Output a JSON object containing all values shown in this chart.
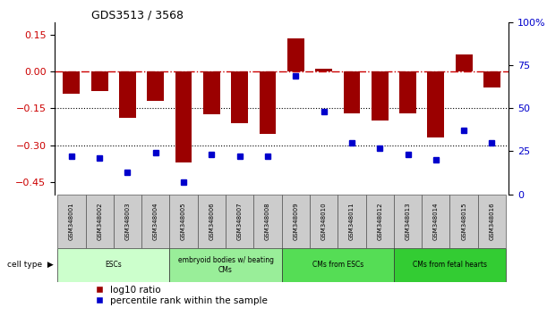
{
  "title": "GDS3513 / 3568",
  "samples": [
    "GSM348001",
    "GSM348002",
    "GSM348003",
    "GSM348004",
    "GSM348005",
    "GSM348006",
    "GSM348007",
    "GSM348008",
    "GSM348009",
    "GSM348010",
    "GSM348011",
    "GSM348012",
    "GSM348013",
    "GSM348014",
    "GSM348015",
    "GSM348016"
  ],
  "log10_ratio": [
    -0.09,
    -0.08,
    -0.19,
    -0.12,
    -0.37,
    -0.175,
    -0.21,
    -0.255,
    0.135,
    0.01,
    -0.17,
    -0.2,
    -0.17,
    -0.27,
    0.07,
    -0.065
  ],
  "percentile_rank": [
    22,
    21,
    13,
    24,
    7,
    23,
    22,
    22,
    69,
    48,
    30,
    27,
    23,
    20,
    37,
    30
  ],
  "bar_color": "#9B0000",
  "dot_color": "#0000CC",
  "dashed_line_color": "#CC0000",
  "cell_types": [
    {
      "label": "ESCs",
      "start": 0,
      "end": 3,
      "color": "#CCFFCC"
    },
    {
      "label": "embryoid bodies w/ beating\nCMs",
      "start": 4,
      "end": 7,
      "color": "#99EE99"
    },
    {
      "label": "CMs from ESCs",
      "start": 8,
      "end": 11,
      "color": "#55DD55"
    },
    {
      "label": "CMs from fetal hearts",
      "start": 12,
      "end": 15,
      "color": "#33CC33"
    }
  ],
  "ylim_left": [
    -0.5,
    0.2
  ],
  "ylim_right": [
    0,
    100
  ],
  "yticks_left": [
    0.15,
    0.0,
    -0.15,
    -0.3,
    -0.45
  ],
  "yticks_right": [
    100,
    75,
    50,
    25,
    0
  ],
  "legend_items": [
    "log10 ratio",
    "percentile rank within the sample"
  ],
  "cell_type_label": "cell type",
  "sample_box_color": "#CCCCCC",
  "bg_color": "#FFFFFF"
}
